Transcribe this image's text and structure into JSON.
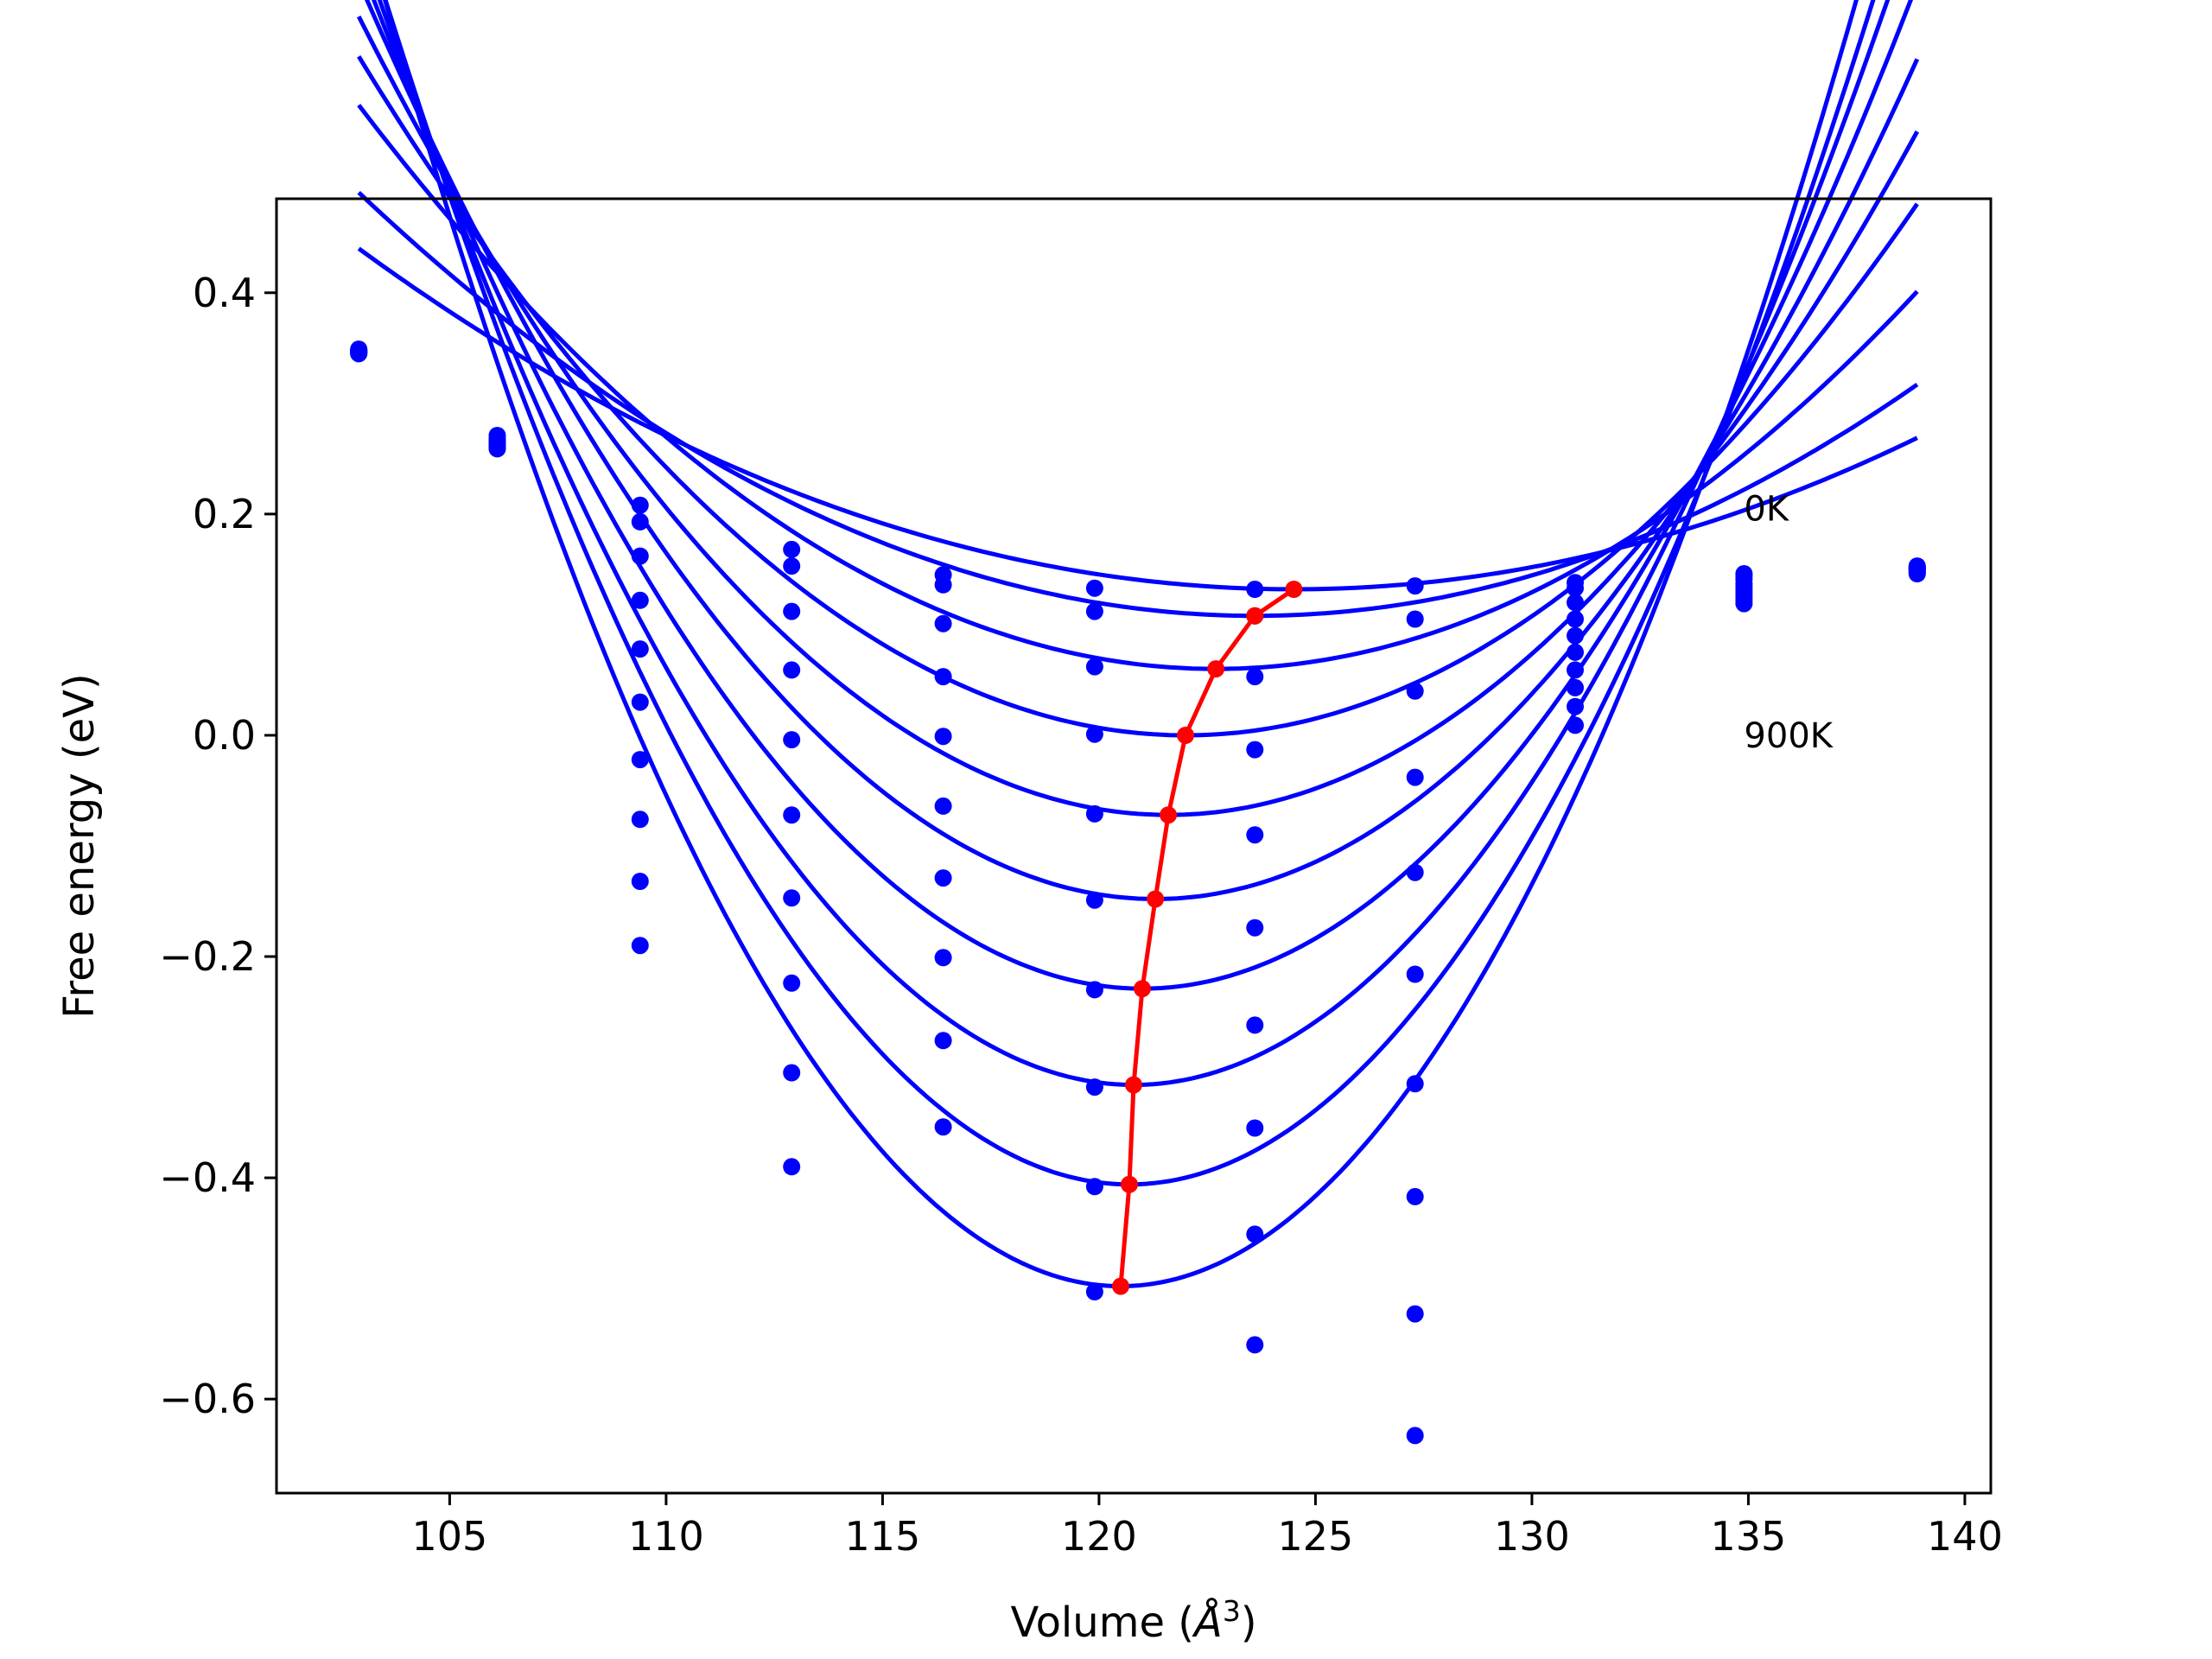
{
  "chart_data": {
    "type": "line",
    "xlabel": "Volume (",
    "xlabel_symbol": "Å",
    "xlabel_exponent": "3",
    "xlabel_close": ")",
    "ylabel": "Free energy (eV)",
    "xlim": [
      101,
      140.6
    ],
    "ylim": [
      -0.685,
      0.485
    ],
    "xticks": [
      105,
      110,
      115,
      120,
      125,
      130,
      135,
      140
    ],
    "yticks": [
      0.4,
      0.2,
      0.0,
      -0.2,
      -0.4,
      -0.6
    ],
    "xtick_labels": [
      "105",
      "110",
      "115",
      "120",
      "125",
      "130",
      "135",
      "140"
    ],
    "ytick_labels": [
      "0.4",
      "0.2",
      "0.0",
      "−0.2",
      "−0.4",
      "−0.6"
    ],
    "grid": false,
    "annotations": [
      {
        "text": "0K",
        "x": 134.9,
        "y": 0.205
      },
      {
        "text": "900K",
        "x": 134.9,
        "y": 0.0
      }
    ],
    "curve_color": "#0000ff",
    "minimum_color": "#ff0000",
    "fit_xrange": [
      102.9,
      138.9
    ],
    "fit_curves": [
      {
        "v0": 124.5,
        "e0": 0.132,
        "a": 0.00066
      },
      {
        "v0": 123.6,
        "e0": 0.108,
        "a": 0.000893
      },
      {
        "v0": 122.7,
        "e0": 0.06,
        "a": 0.0013
      },
      {
        "v0": 122.0,
        "e0": 0.0,
        "a": 0.001682
      },
      {
        "v0": 121.6,
        "e0": -0.072,
        "a": 0.002064
      },
      {
        "v0": 121.3,
        "e0": -0.148,
        "a": 0.002451
      },
      {
        "v0": 121.0,
        "e0": -0.229,
        "a": 0.002836
      },
      {
        "v0": 120.8,
        "e0": -0.316,
        "a": 0.003233
      },
      {
        "v0": 120.7,
        "e0": -0.406,
        "a": 0.003626
      },
      {
        "v0": 120.5,
        "e0": -0.498,
        "a": 0.004026
      }
    ],
    "data_points": [
      {
        "x": 102.9,
        "y": [
          0.345,
          0.345,
          0.346,
          0.346,
          0.347,
          0.347,
          0.347,
          0.348,
          0.348,
          0.349
        ]
      },
      {
        "x": 106.1,
        "y": [
          0.271,
          0.268,
          0.266,
          0.265,
          0.264,
          0.263,
          0.262,
          0.261,
          0.26,
          0.259
        ]
      },
      {
        "x": 109.4,
        "y": [
          0.208,
          0.193,
          0.162,
          0.122,
          0.078,
          0.03,
          -0.022,
          -0.076,
          -0.132,
          -0.19
        ]
      },
      {
        "x": 112.9,
        "y": [
          0.168,
          0.153,
          0.112,
          0.059,
          -0.004,
          -0.072,
          -0.147,
          -0.224,
          -0.305,
          -0.39
        ]
      },
      {
        "x": 116.4,
        "y": [
          0.145,
          0.136,
          0.101,
          0.053,
          -0.001,
          -0.064,
          -0.129,
          -0.201,
          -0.276,
          -0.354
        ]
      },
      {
        "x": 119.9,
        "y": [
          0.133,
          0.112,
          0.062,
          0.001,
          -0.071,
          -0.149,
          -0.23,
          -0.318,
          -0.408,
          -0.503
        ]
      },
      {
        "x": 123.6,
        "y": [
          0.132,
          0.108,
          0.053,
          -0.013,
          -0.09,
          -0.174,
          -0.262,
          -0.355,
          -0.451,
          -0.551
        ]
      },
      {
        "x": 127.3,
        "y": [
          0.135,
          0.105,
          0.04,
          -0.038,
          -0.124,
          -0.216,
          -0.315,
          -0.417,
          -0.523,
          -0.633
        ]
      },
      {
        "x": 131.0,
        "y": [
          0.138,
          0.133,
          0.12,
          0.105,
          0.09,
          0.075,
          0.059,
          0.043,
          0.026,
          0.009
        ]
      },
      {
        "x": 134.9,
        "y": [
          0.146,
          0.144,
          0.141,
          0.137,
          0.134,
          0.131,
          0.128,
          0.125,
          0.122,
          0.119
        ]
      },
      {
        "x": 138.9,
        "y": [
          0.153,
          0.152,
          0.152,
          0.151,
          0.15,
          0.15,
          0.149,
          0.148,
          0.147,
          0.146
        ]
      }
    ],
    "minimum_line": {
      "x": [
        124.5,
        123.6,
        122.7,
        122.0,
        121.6,
        121.3,
        121.0,
        120.8,
        120.7,
        120.5
      ],
      "y": [
        0.132,
        0.108,
        0.06,
        0.0,
        -0.072,
        -0.148,
        -0.229,
        -0.316,
        -0.406,
        -0.498
      ]
    }
  }
}
